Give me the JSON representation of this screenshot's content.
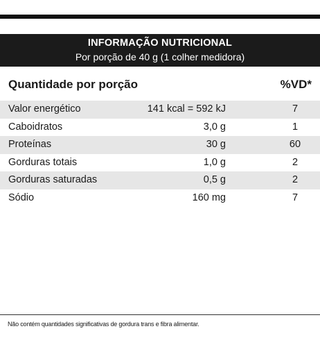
{
  "header": {
    "title": "INFORMAÇÃO NUTRICIONAL",
    "subtitle": "Por porção de 40 g (1 colher medidora)"
  },
  "columns": {
    "quantity": "Quantidade por porção",
    "dv": "%VD*"
  },
  "rows": [
    {
      "name": "Valor energético",
      "amount": "141 kcal = 592 kJ",
      "dv": "7"
    },
    {
      "name": "Caboidratos",
      "amount": "3,0 g",
      "dv": "1"
    },
    {
      "name": "Proteínas",
      "amount": "30 g",
      "dv": "60"
    },
    {
      "name": "Gorduras totais",
      "amount": "1,0 g",
      "dv": "2"
    },
    {
      "name": "Gorduras saturadas",
      "amount": "0,5 g",
      "dv": "2"
    },
    {
      "name": "Sódio",
      "amount": "160 mg",
      "dv": "7"
    }
  ],
  "footnote": "Não contém quantidades significativas de gordura trans e fibra alimentar."
}
